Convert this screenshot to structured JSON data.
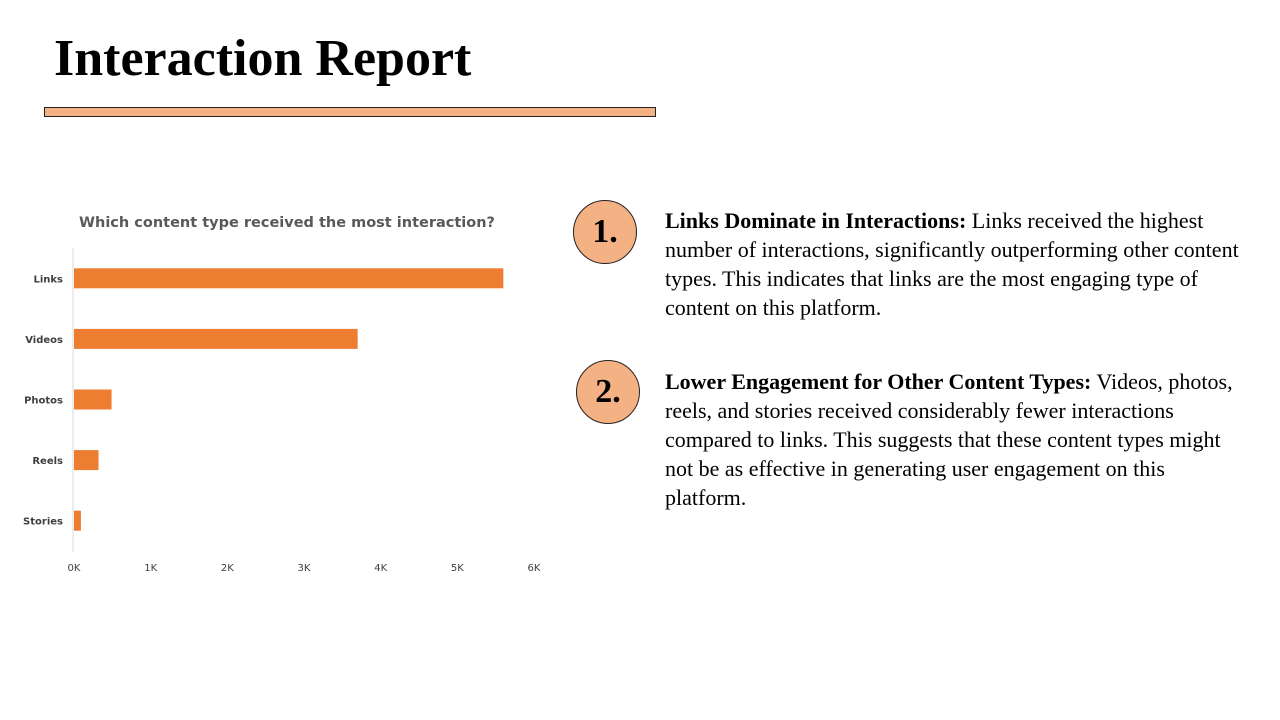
{
  "slide": {
    "title": "Interaction Report",
    "accent_color": "#f4b183",
    "bar_color": "#ed7d31"
  },
  "points": [
    {
      "number": "1.",
      "heading": "Links Dominate in Interactions:",
      "body": " Links received the highest number of interactions, significantly outperforming other content types. This indicates that links are the most engaging type of content on this platform."
    },
    {
      "number": "2.",
      "heading": "Lower Engagement for Other Content Types:",
      "body": " Videos, photos, reels, and stories received considerably fewer interactions compared to links. This suggests that these content types might not be as effective in generating user engagement on this platform."
    }
  ],
  "chart_data": {
    "type": "bar",
    "orientation": "horizontal",
    "title": "Which content type received the most interaction?",
    "categories": [
      "Links",
      "Videos",
      "Photos",
      "Reels",
      "Stories"
    ],
    "values": [
      5600,
      3700,
      490,
      320,
      90
    ],
    "xlim": [
      0,
      6000
    ],
    "xticks": [
      0,
      1000,
      2000,
      3000,
      4000,
      5000,
      6000
    ],
    "xtick_labels": [
      "0K",
      "1K",
      "2K",
      "3K",
      "4K",
      "5K",
      "6K"
    ],
    "grid": false,
    "legend": "none"
  }
}
